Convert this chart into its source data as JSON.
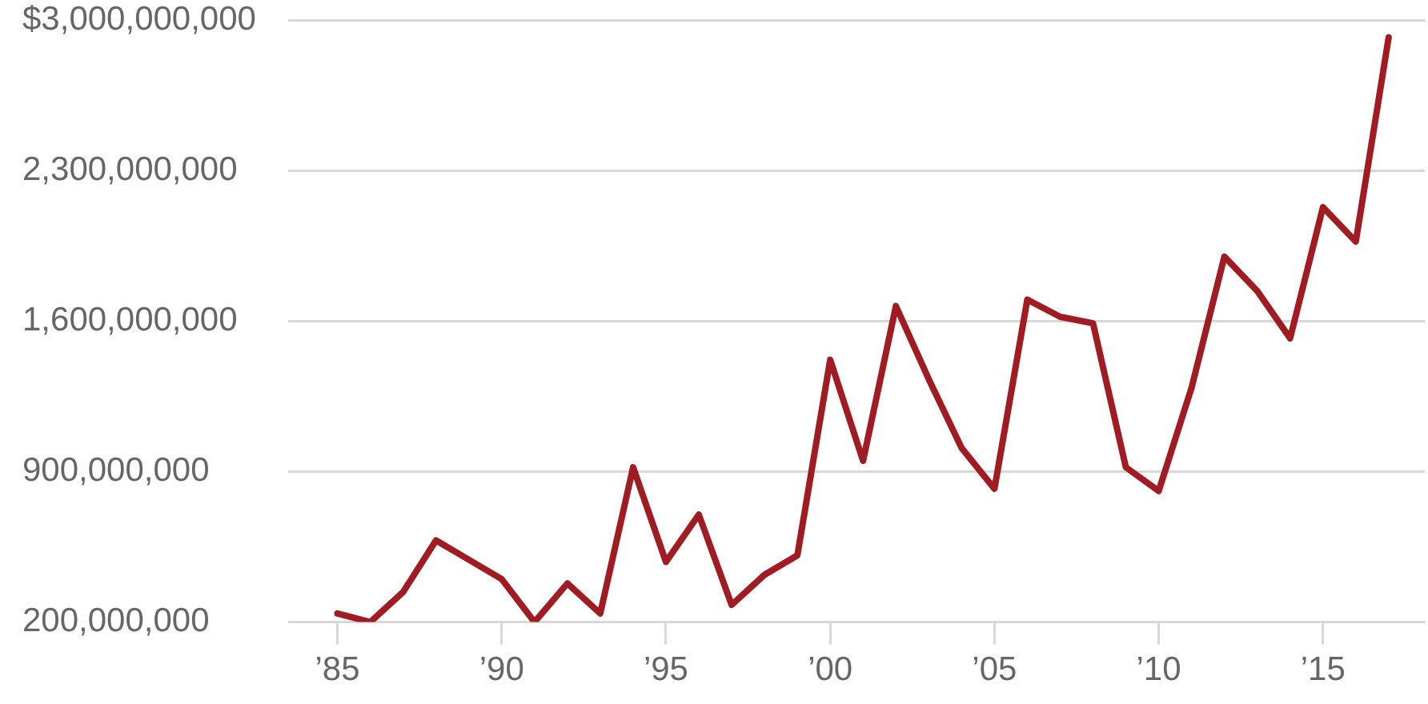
{
  "chart_data": {
    "type": "line",
    "x": [
      1985,
      1986,
      1987,
      1988,
      1989,
      1990,
      1991,
      1992,
      1993,
      1994,
      1995,
      1996,
      1997,
      1998,
      1999,
      2000,
      2001,
      2002,
      2003,
      2004,
      2005,
      2006,
      2007,
      2008,
      2009,
      2010,
      2011,
      2012,
      2013,
      2014,
      2015,
      2016,
      2017
    ],
    "series": [
      {
        "color": "#a01c22",
        "values": [
          240000000,
          200000000,
          340000000,
          580000000,
          490000000,
          400000000,
          200000000,
          380000000,
          240000000,
          920000000,
          480000000,
          700000000,
          280000000,
          420000000,
          510000000,
          1420000000,
          950000000,
          1670000000,
          1330000000,
          1010000000,
          820000000,
          1700000000,
          1620000000,
          1590000000,
          920000000,
          810000000,
          1290000000,
          1900000000,
          1740000000,
          1520000000,
          2130000000,
          1970000000,
          2920000000
        ]
      }
    ],
    "xlim": [
      1983.5,
      2018.1
    ],
    "xticks": [
      {
        "value": 1985,
        "label": "’85"
      },
      {
        "value": 1990,
        "label": "’90"
      },
      {
        "value": 1995,
        "label": "’95"
      },
      {
        "value": 2000,
        "label": "’00"
      },
      {
        "value": 2005,
        "label": "’05"
      },
      {
        "value": 2010,
        "label": "’10"
      },
      {
        "value": 2015,
        "label": "’15"
      }
    ],
    "ylim": [
      200000000,
      3000000000
    ],
    "yticks": [
      {
        "value": 200000000,
        "label": "200,000,000"
      },
      {
        "value": 900000000,
        "label": "900,000,000"
      },
      {
        "value": 1600000000,
        "label": "1,600,000,000"
      },
      {
        "value": 2300000000,
        "label": "2,300,000,000"
      },
      {
        "value": 3000000000,
        "label": "$3,000,000,000"
      }
    ],
    "grid": "y",
    "marker": "none",
    "line_style": "solid"
  }
}
